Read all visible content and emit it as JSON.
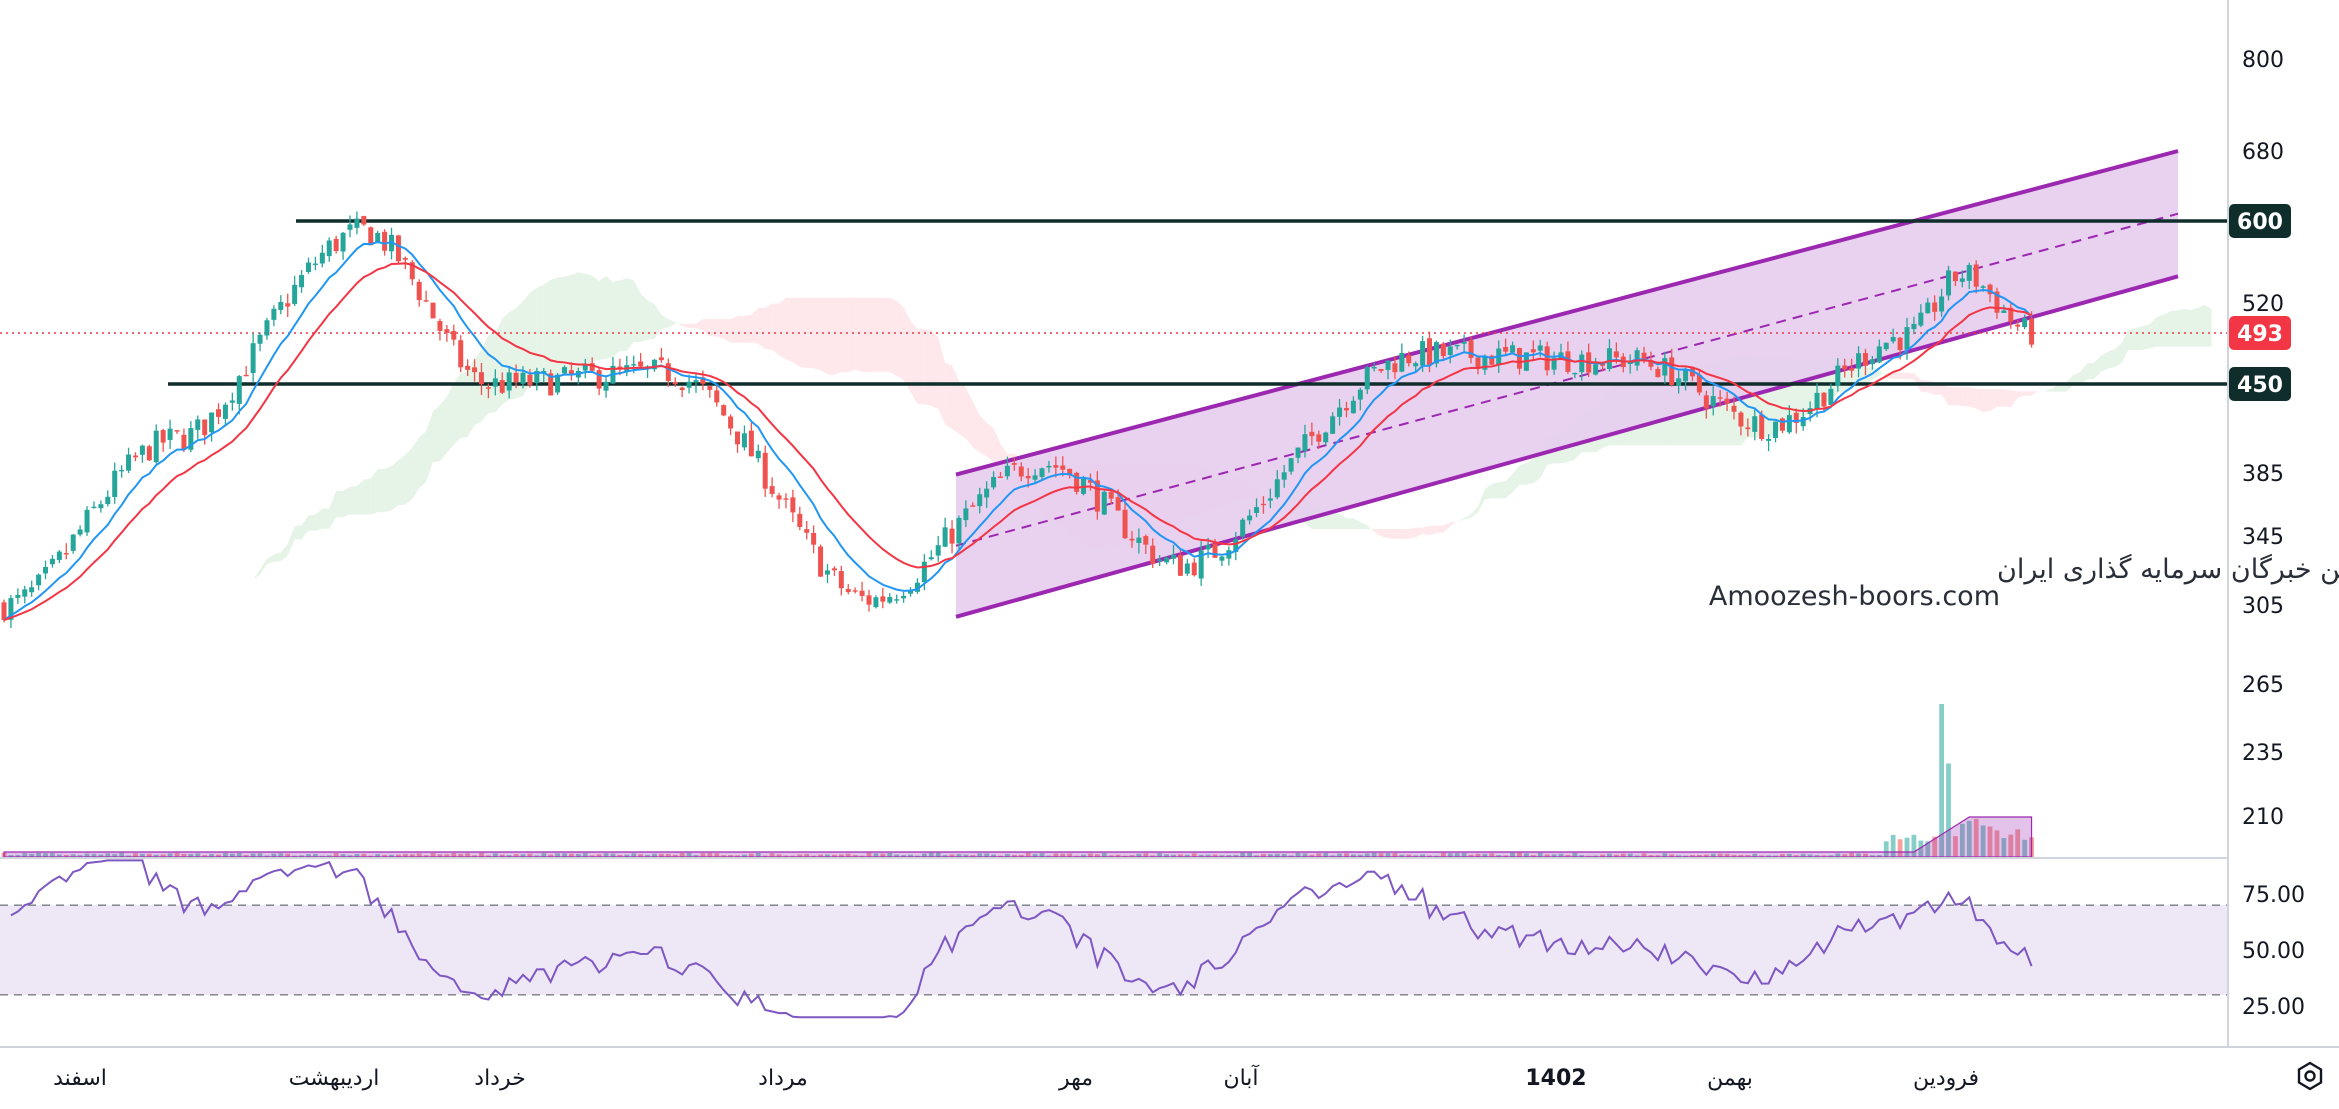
{
  "watermark": {
    "line1": "انجمن خبرگان سرمایه گذاری ایران",
    "line2": "Amoozesh-boors.com"
  },
  "colors": {
    "up": "#26a69a",
    "down": "#ef5350",
    "channel": "#9c27b0",
    "channel_fill": "#e6cdee",
    "hline": "#0f2d2a",
    "ema_fast": "#2196f3",
    "ema_slow": "#f23645",
    "rsi": "#7e57c2",
    "rsi_band": "#ede7f6",
    "price_badge": "#f23645"
  },
  "chart_data": [
    {
      "type": "candlestick",
      "y_axis_ticks": [
        "800",
        "680",
        "600",
        "520",
        "493",
        "450",
        "385",
        "345",
        "305",
        "265",
        "235",
        "210"
      ],
      "time_axis_labels": [
        "اسفند",
        "اردیبهشت",
        "خرداد",
        "مرداد",
        "مهر",
        "آبان",
        "1402",
        "بهمن",
        "فرودین"
      ],
      "current_price": "493",
      "horizontal_levels": [
        "600",
        "450"
      ],
      "indicators": [
        "ema-fast",
        "ema-slow",
        "ichimoku-cloud",
        "volume"
      ],
      "channel": "ascending",
      "ohlc_key_points": [
        {
          "i": 0,
          "close": 305
        },
        {
          "i": 25,
          "close": 410
        },
        {
          "i": 52,
          "close": 590
        },
        {
          "i": 70,
          "close": 450
        },
        {
          "i": 95,
          "close": 460
        },
        {
          "i": 125,
          "close": 308
        },
        {
          "i": 150,
          "close": 392
        },
        {
          "i": 170,
          "close": 328
        },
        {
          "i": 205,
          "close": 475
        },
        {
          "i": 235,
          "close": 470
        },
        {
          "i": 255,
          "close": 420
        },
        {
          "i": 275,
          "close": 490
        },
        {
          "i": 283,
          "close": 548
        },
        {
          "i": 293,
          "close": 493
        }
      ]
    },
    {
      "type": "line",
      "name": "RSI",
      "y_axis_ticks": [
        "75.00",
        "50.00",
        "25.00"
      ],
      "bands": [
        70,
        30
      ]
    }
  ]
}
